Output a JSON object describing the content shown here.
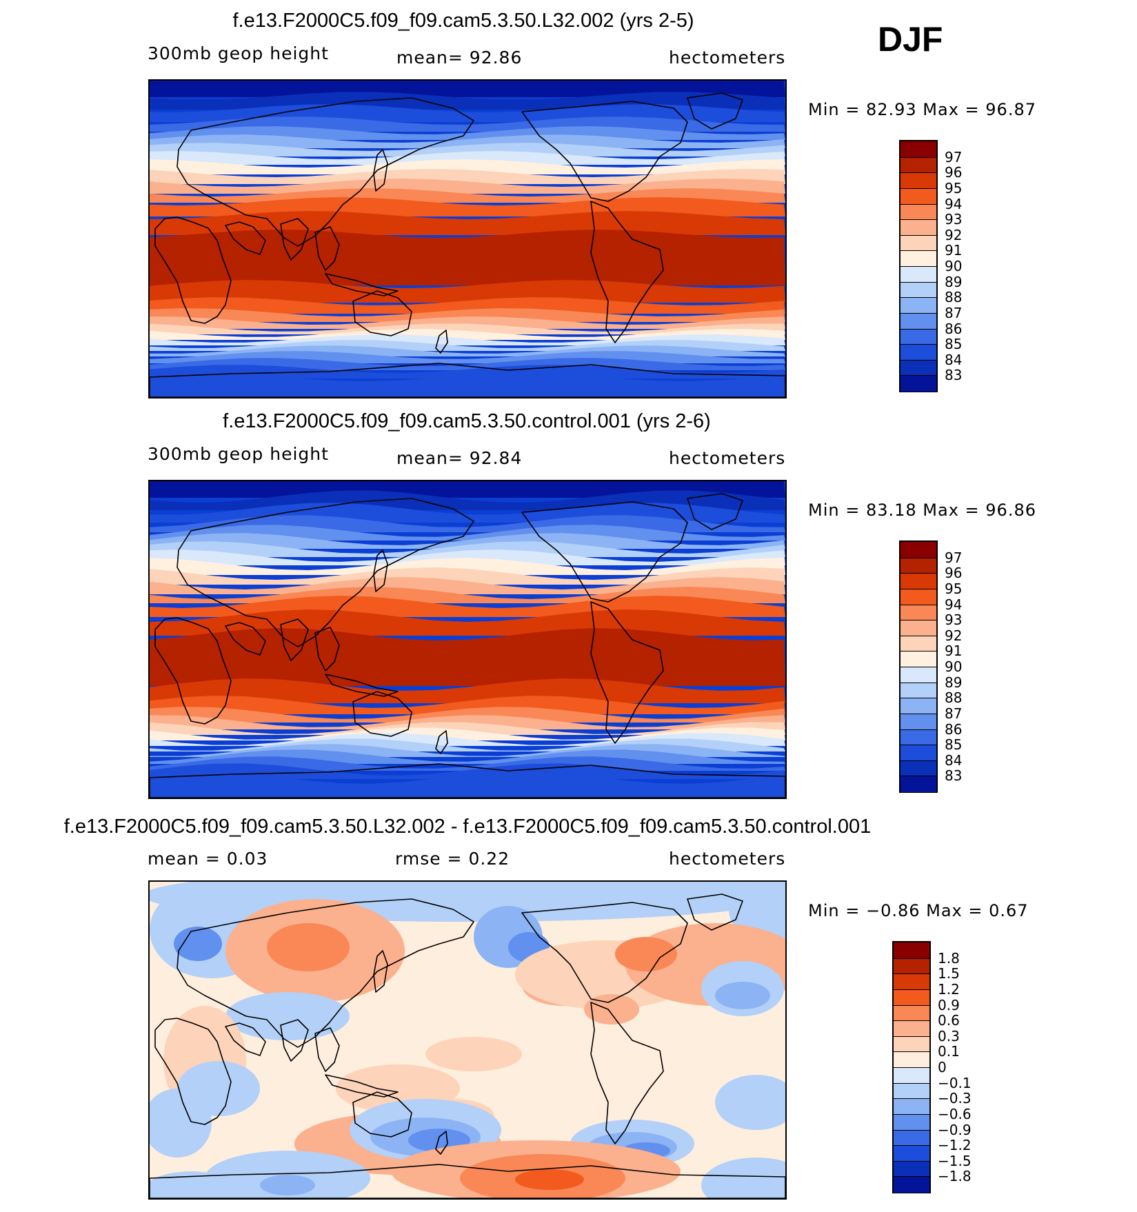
{
  "season": "DJF",
  "panels": [
    {
      "id": "case",
      "title": "f.e13.F2000C5.f09_f09.cam5.3.50.L32.002 (yrs 2-5)",
      "left_label": "300mb geop height",
      "center_label": "mean=   92.86",
      "right_label": "hectometers",
      "minmax": "Min =   82.93 Max =   96.87",
      "pattern": "zonal",
      "colorbar": {
        "labels": [
          "97",
          "96",
          "95",
          "94",
          "93",
          "92",
          "91",
          "90",
          "89",
          "88",
          "87",
          "86",
          "85",
          "84",
          "83"
        ],
        "colors": [
          "#8a0000",
          "#b52200",
          "#d93a05",
          "#f25a1e",
          "#f98856",
          "#fbb08e",
          "#fdd3b9",
          "#fff0e0",
          "#d9e8fb",
          "#b3d0f8",
          "#8cb3f3",
          "#6290ee",
          "#3b6ae6",
          "#1d4ddb",
          "#0a2fb8",
          "#04149a"
        ]
      },
      "data_range": {
        "min": 82.93,
        "max": 96.87,
        "mean": 92.86,
        "units": "hectometers",
        "level": "300mb"
      }
    },
    {
      "id": "control",
      "title": "f.e13.F2000C5.f09_f09.cam5.3.50.control.001 (yrs 2-6)",
      "left_label": "300mb geop height",
      "center_label": "mean=   92.84",
      "right_label": "hectometers",
      "minmax": "Min =   83.18 Max =   96.86",
      "pattern": "zonal",
      "colorbar": {
        "labels": [
          "97",
          "96",
          "95",
          "94",
          "93",
          "92",
          "91",
          "90",
          "89",
          "88",
          "87",
          "86",
          "85",
          "84",
          "83"
        ],
        "colors": [
          "#8a0000",
          "#b52200",
          "#d93a05",
          "#f25a1e",
          "#f98856",
          "#fbb08e",
          "#fdd3b9",
          "#fff0e0",
          "#d9e8fb",
          "#b3d0f8",
          "#8cb3f3",
          "#6290ee",
          "#3b6ae6",
          "#1d4ddb",
          "#0a2fb8",
          "#04149a"
        ]
      },
      "data_range": {
        "min": 83.18,
        "max": 96.86,
        "mean": 92.84,
        "units": "hectometers",
        "level": "300mb"
      }
    },
    {
      "id": "diff",
      "title": "f.e13.F2000C5.f09_f09.cam5.3.50.L32.002 - f.e13.F2000C5.f09_f09.cam5.3.50.control.001",
      "left_label": "mean =    0.03",
      "center_label": "rmse =    0.22",
      "right_label": "hectometers",
      "minmax": "Min =   −0.86 Max =    0.67",
      "pattern": "diff",
      "colorbar": {
        "labels": [
          "1.8",
          "1.5",
          "1.2",
          "0.9",
          "0.6",
          "0.3",
          "0.1",
          "0",
          "−0.1",
          "−0.3",
          "−0.6",
          "−0.9",
          "−1.2",
          "−1.5",
          "−1.8"
        ],
        "colors": [
          "#8a0000",
          "#b52200",
          "#d93a05",
          "#f25a1e",
          "#f98856",
          "#fbb08e",
          "#fdd3b9",
          "#feeedd",
          "#d9e8fb",
          "#b3d0f8",
          "#8cb3f3",
          "#6290ee",
          "#3b6ae6",
          "#1d4ddb",
          "#0a2fb8",
          "#04149a"
        ]
      },
      "data_range": {
        "min": -0.86,
        "max": 0.67,
        "mean": 0.03,
        "rmse": 0.22,
        "units": "hectometers"
      }
    }
  ]
}
